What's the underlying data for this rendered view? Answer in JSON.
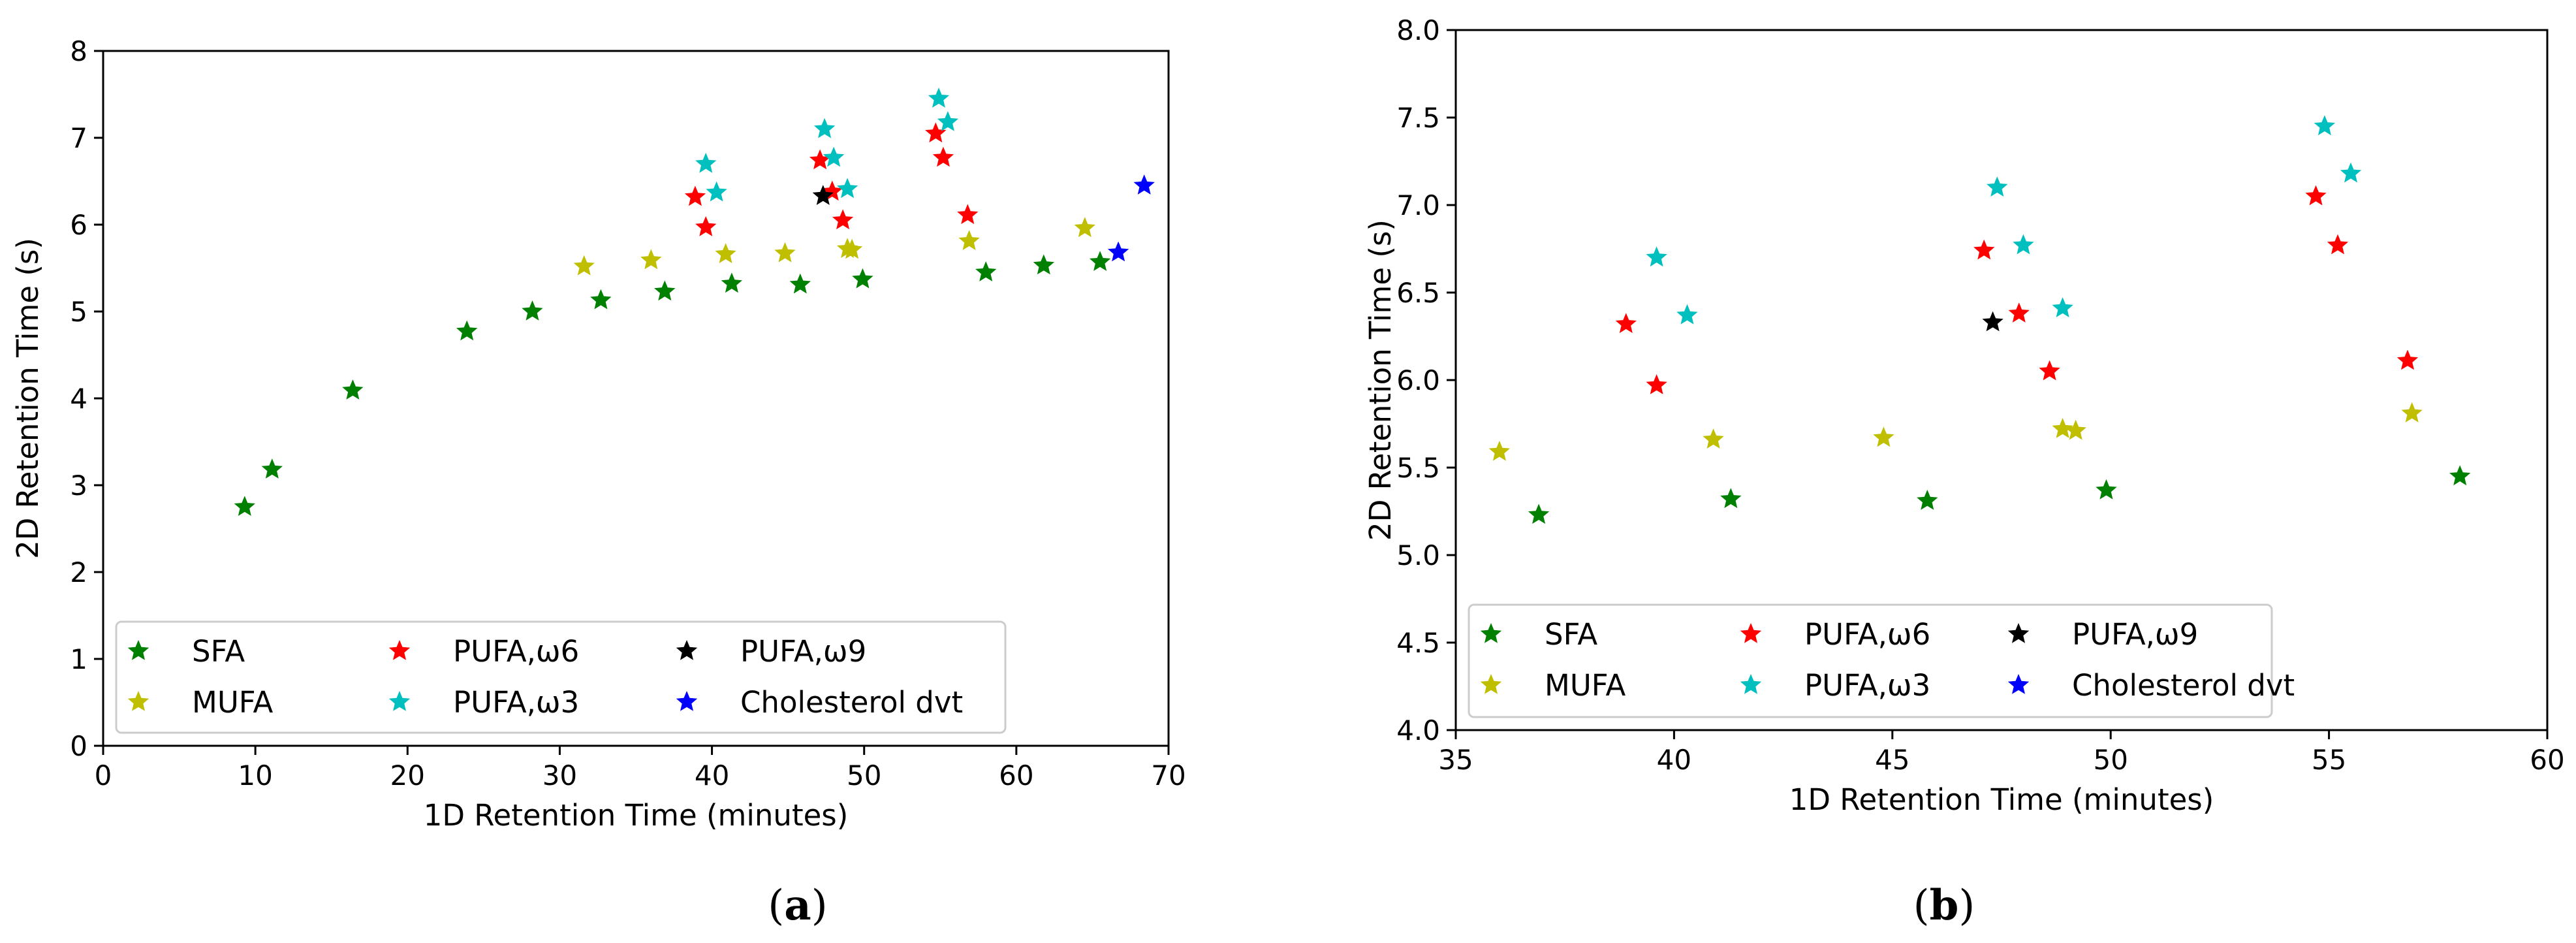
{
  "colors": {
    "SFA": "#008000",
    "MUFA": "#bfbf00",
    "PUFA,ω6": "#ff0000",
    "PUFA,ω3": "#00bfbf",
    "PUFA,ω9": "#000000",
    "Cholesterol dvt": "#0000ff"
  },
  "chart_data": [
    {
      "panel": "a",
      "caption_open": "(",
      "caption_letter": "a",
      "caption_close": ")",
      "type": "scatter",
      "xlabel": "1D Retention Time (minutes)",
      "ylabel": "2D Retention Time (s)",
      "xlim": [
        0,
        70
      ],
      "ylim": [
        0,
        8
      ],
      "xticks": [
        0,
        10,
        20,
        30,
        40,
        50,
        60,
        70
      ],
      "yticks": [
        0,
        1,
        2,
        3,
        4,
        5,
        6,
        7,
        8
      ],
      "xtick_labels": [
        "0",
        "10",
        "20",
        "30",
        "40",
        "50",
        "60",
        "70"
      ],
      "ytick_labels": [
        "0",
        "1",
        "2",
        "3",
        "4",
        "5",
        "6",
        "7",
        "8"
      ],
      "legend_position": "lower-left",
      "legend_columns": 3,
      "series": [
        {
          "name": "SFA",
          "x": [
            9.3,
            11.1,
            16.4,
            23.9,
            28.2,
            32.7,
            36.9,
            41.3,
            45.8,
            49.9,
            58.0,
            61.8,
            65.5
          ],
          "y": [
            2.75,
            3.18,
            4.09,
            4.77,
            5.0,
            5.13,
            5.23,
            5.32,
            5.31,
            5.37,
            5.45,
            5.53,
            5.57
          ]
        },
        {
          "name": "MUFA",
          "x": [
            31.6,
            36.0,
            40.9,
            44.8,
            48.9,
            49.2,
            56.9,
            64.5
          ],
          "y": [
            5.52,
            5.59,
            5.66,
            5.67,
            5.72,
            5.71,
            5.81,
            5.96
          ]
        },
        {
          "name": "PUFA,ω6",
          "x": [
            38.9,
            39.6,
            47.1,
            47.9,
            48.6,
            54.7,
            55.2,
            56.8
          ],
          "y": [
            6.32,
            5.97,
            6.74,
            6.38,
            6.05,
            7.05,
            6.77,
            6.11
          ]
        },
        {
          "name": "PUFA,ω3",
          "x": [
            39.6,
            40.3,
            47.4,
            48.0,
            48.9,
            54.9,
            55.5
          ],
          "y": [
            6.7,
            6.37,
            7.1,
            6.77,
            6.41,
            7.45,
            7.18
          ]
        },
        {
          "name": "PUFA,ω9",
          "x": [
            47.3
          ],
          "y": [
            6.33
          ]
        },
        {
          "name": "Cholesterol dvt",
          "x": [
            66.7,
            68.4
          ],
          "y": [
            5.68,
            6.45
          ]
        }
      ]
    },
    {
      "panel": "b",
      "caption_open": "(",
      "caption_letter": "b",
      "caption_close": ")",
      "type": "scatter",
      "xlabel": "1D Retention Time (minutes)",
      "ylabel": "2D Retention Time (s)",
      "xlim": [
        35,
        60
      ],
      "ylim": [
        4.0,
        8.0
      ],
      "xticks": [
        35,
        40,
        45,
        50,
        55,
        60
      ],
      "yticks": [
        4.0,
        4.5,
        5.0,
        5.5,
        6.0,
        6.5,
        7.0,
        7.5,
        8.0
      ],
      "xtick_labels": [
        "35",
        "40",
        "45",
        "50",
        "55",
        "60"
      ],
      "ytick_labels": [
        "4.0",
        "4.5",
        "5.0",
        "5.5",
        "6.0",
        "6.5",
        "7.0",
        "7.5",
        "8.0"
      ],
      "legend_position": "lower-left",
      "legend_columns": 3,
      "series": [
        {
          "name": "SFA",
          "x": [
            36.9,
            41.3,
            45.8,
            49.9,
            58.0
          ],
          "y": [
            5.23,
            5.32,
            5.31,
            5.37,
            5.45
          ]
        },
        {
          "name": "MUFA",
          "x": [
            36.0,
            40.9,
            44.8,
            48.9,
            49.2,
            56.9
          ],
          "y": [
            5.59,
            5.66,
            5.67,
            5.72,
            5.71,
            5.81
          ]
        },
        {
          "name": "PUFA,ω6",
          "x": [
            38.9,
            39.6,
            47.1,
            47.9,
            48.6,
            54.7,
            55.2,
            56.8
          ],
          "y": [
            6.32,
            5.97,
            6.74,
            6.38,
            6.05,
            7.05,
            6.77,
            6.11
          ]
        },
        {
          "name": "PUFA,ω3",
          "x": [
            39.6,
            40.3,
            47.4,
            48.0,
            48.9,
            54.9,
            55.5
          ],
          "y": [
            6.7,
            6.37,
            7.1,
            6.77,
            6.41,
            7.45,
            7.18
          ]
        },
        {
          "name": "PUFA,ω9",
          "x": [
            47.3
          ],
          "y": [
            6.33
          ]
        },
        {
          "name": "Cholesterol dvt",
          "x": [],
          "y": []
        }
      ]
    }
  ]
}
